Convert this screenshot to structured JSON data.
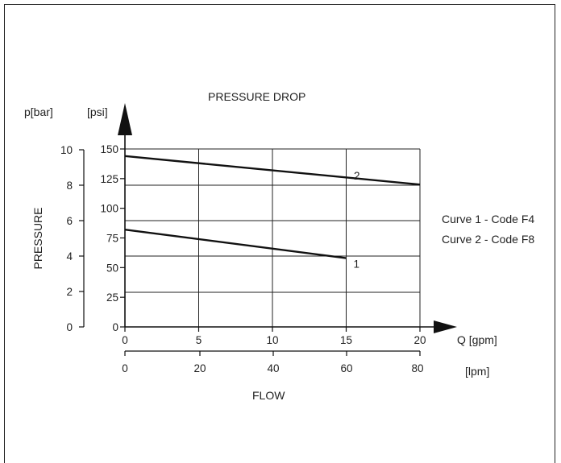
{
  "chart_data": {
    "type": "line",
    "title": "PRESSURE DROP",
    "xlabel": "FLOW",
    "ylabel": "PRESSURE",
    "x_axis_gpm": {
      "unit": "Q [gpm]",
      "ticks": [
        "0",
        "5",
        "10",
        "15",
        "20"
      ],
      "range": [
        0,
        20
      ]
    },
    "x_axis_lpm": {
      "unit": "[lpm]",
      "ticks": [
        "0",
        "20",
        "40",
        "60",
        "80"
      ]
    },
    "y_axis_bar": {
      "unit": "p[bar]",
      "ticks": [
        "0",
        "2",
        "4",
        "6",
        "8",
        "10"
      ],
      "range": [
        0,
        10
      ]
    },
    "y_axis_psi": {
      "unit": "[psi]",
      "ticks": [
        "0",
        "25",
        "50",
        "75",
        "100",
        "125",
        "150"
      ],
      "range": [
        0,
        150
      ]
    },
    "series": [
      {
        "name": "1",
        "x": [
          0,
          15
        ],
        "y": [
          82,
          58
        ]
      },
      {
        "name": "2",
        "x": [
          0,
          20
        ],
        "y": [
          144,
          120
        ]
      }
    ],
    "grid": true,
    "legend": [
      "Curve 1 - Code F4",
      "Curve 2 - Code F8"
    ]
  }
}
